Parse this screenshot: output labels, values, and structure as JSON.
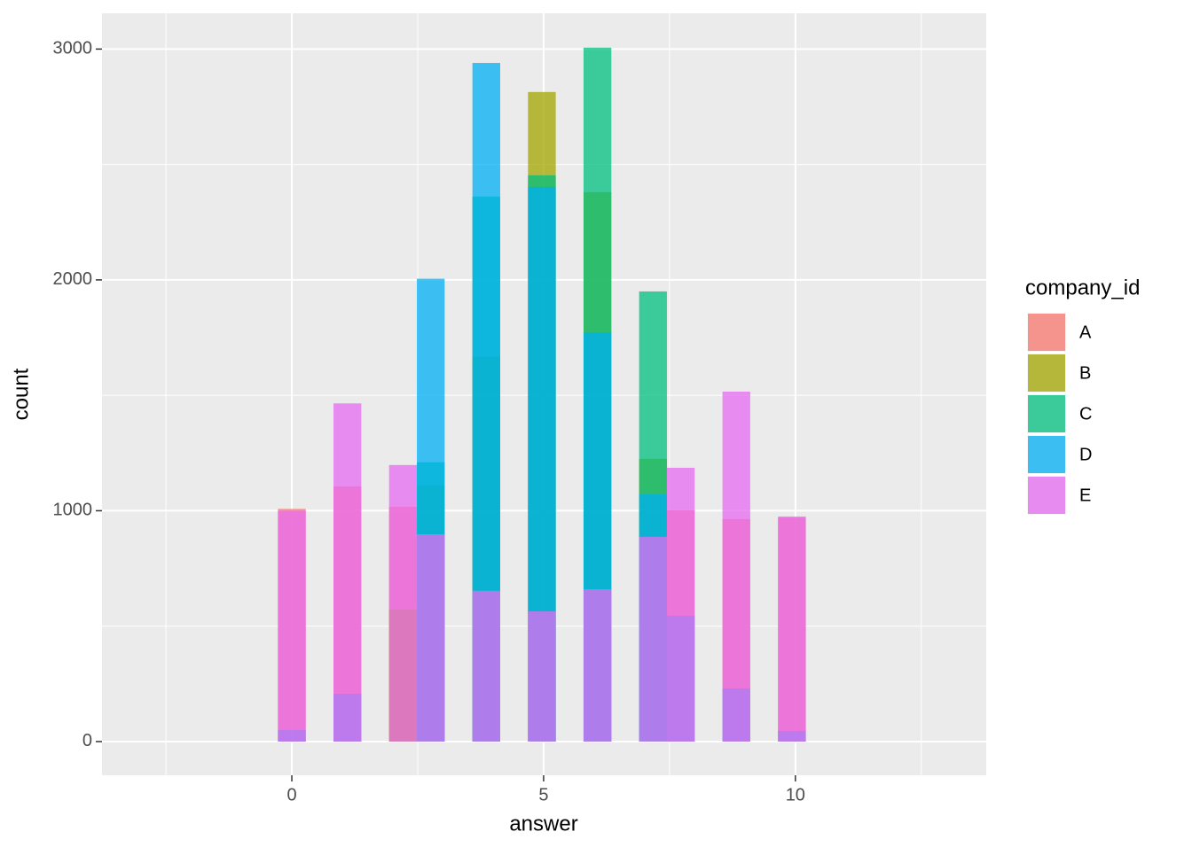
{
  "chart_data": {
    "type": "histogram",
    "x_label": "answer",
    "y_label": "count",
    "legend_title": "company_id",
    "bins": [
      -0.2759,
      0.2759,
      0.8276,
      1.3793,
      1.931,
      2.4828,
      3.0345,
      3.5862,
      4.1379,
      4.6897,
      5.2414,
      5.7931,
      6.3448,
      6.8966,
      7.4483,
      8.0,
      8.5517,
      9.1034,
      9.6552,
      10.2069
    ],
    "series": [
      {
        "name": "A",
        "color": "#F8766D",
        "values": [
          1008,
          0,
          1105,
          0,
          1017,
          0,
          0,
          0,
          0,
          0,
          0,
          0,
          0,
          0,
          1002,
          0,
          964,
          0,
          970
        ]
      },
      {
        "name": "B",
        "color": "#A3A500",
        "values": [
          0,
          0,
          0,
          0,
          572,
          1110,
          0,
          1666,
          0,
          2814,
          0,
          2380,
          0,
          1225,
          0,
          0,
          0,
          0,
          0
        ]
      },
      {
        "name": "C",
        "color": "#00BF7D",
        "values": [
          0,
          0,
          0,
          0,
          0,
          1210,
          0,
          2361,
          0,
          2453,
          0,
          3006,
          0,
          1950,
          0,
          0,
          0,
          0,
          0
        ]
      },
      {
        "name": "D",
        "color": "#00B0F6",
        "values": [
          50,
          0,
          207,
          0,
          0,
          2005,
          0,
          2940,
          0,
          2403,
          0,
          1773,
          0,
          1071,
          545,
          0,
          230,
          0,
          46
        ]
      },
      {
        "name": "E",
        "color": "#E76BF3",
        "values": [
          1000,
          0,
          1465,
          0,
          1198,
          898,
          0,
          653,
          0,
          564,
          0,
          660,
          0,
          887,
          1186,
          0,
          1516,
          0,
          975
        ]
      }
    ],
    "xlim": [
      -3.77,
      13.79
    ],
    "ylim": [
      -146,
      3155
    ],
    "xticks": [
      0,
      5,
      10
    ],
    "yticks": [
      0,
      1000,
      2000,
      3000
    ],
    "xminor": [
      -2.5,
      2.5,
      7.5,
      12.5
    ],
    "yminor": [
      500,
      1500,
      2500
    ],
    "grid": true,
    "alpha": 0.75,
    "legend_position": "right"
  }
}
